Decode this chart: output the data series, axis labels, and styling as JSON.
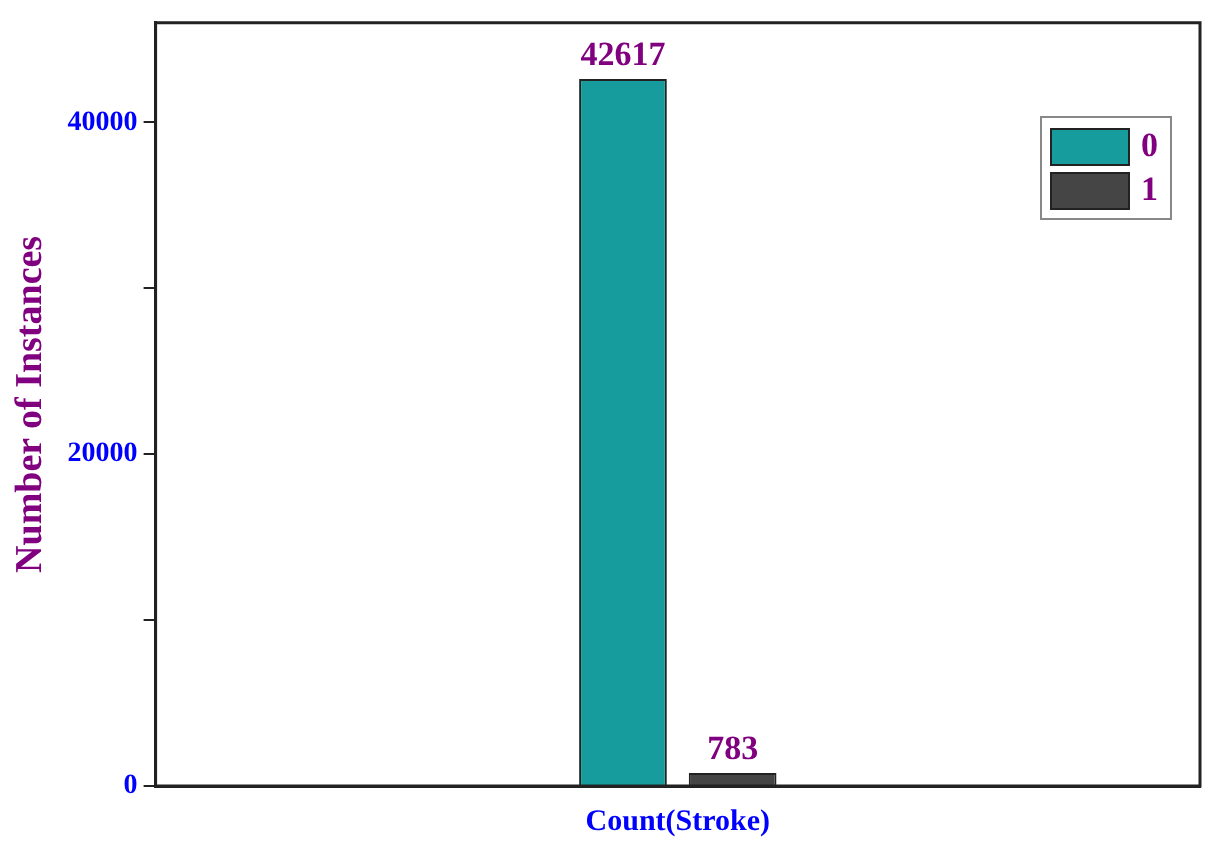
{
  "chart_data": {
    "type": "bar",
    "categories": [
      "Count(Stroke)"
    ],
    "series": [
      {
        "name": "0",
        "color": "#169c9c",
        "values": [
          42617
        ]
      },
      {
        "name": "1",
        "color": "#454545",
        "values": [
          783
        ]
      }
    ],
    "ylabel": "Number of Instances",
    "ylim": [
      0,
      46000
    ],
    "yticks": [
      0,
      {
        "value": 10000,
        "label": null
      },
      20000,
      {
        "value": 30000,
        "label": null
      },
      40000
    ],
    "data_labels": true,
    "legend": "top right",
    "grid": false
  }
}
